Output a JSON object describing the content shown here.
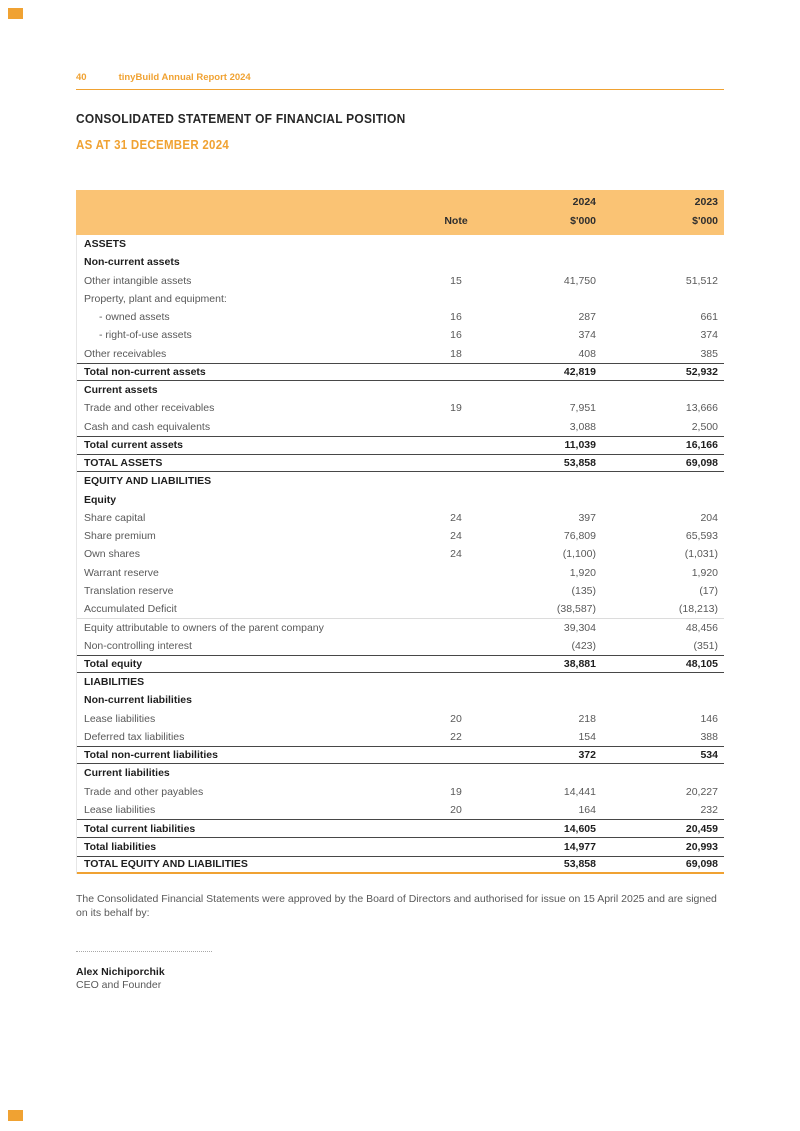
{
  "colors": {
    "accent": "#F0A232",
    "band": "#FAC374"
  },
  "page": {
    "number": "40",
    "report_title": "tinyBuild Annual Report 2024"
  },
  "heading": {
    "title": "CONSOLIDATED STATEMENT OF FINANCIAL POSITION",
    "subtitle": "AS AT 31 DECEMBER 2024"
  },
  "table": {
    "columns": {
      "note": "Note",
      "y2024": "2024",
      "y2023": "2023",
      "unit": "$'000"
    },
    "rows": [
      {
        "label": "ASSETS",
        "note": "",
        "v2024": "",
        "v2023": "",
        "cls": "b"
      },
      {
        "label": "Non-current assets",
        "note": "",
        "v2024": "",
        "v2023": "",
        "cls": "b"
      },
      {
        "label": "Other intangible assets",
        "note": "15",
        "v2024": "41,750",
        "v2023": "51,512",
        "cls": ""
      },
      {
        "label": "Property, plant and equipment:",
        "note": "",
        "v2024": "",
        "v2023": "",
        "cls": ""
      },
      {
        "label": "- owned assets",
        "note": "16",
        "v2024": "287",
        "v2023": "661",
        "cls": "ind"
      },
      {
        "label": "- right-of-use assets",
        "note": "16",
        "v2024": "374",
        "v2023": "374",
        "cls": "ind"
      },
      {
        "label": "Other receivables",
        "note": "18",
        "v2024": "408",
        "v2023": "385",
        "cls": ""
      },
      {
        "label": "Total non-current assets",
        "note": "",
        "v2024": "42,819",
        "v2023": "52,932",
        "cls": "b bt bb"
      },
      {
        "label": "Current assets",
        "note": "",
        "v2024": "",
        "v2023": "",
        "cls": "b"
      },
      {
        "label": "Trade and other receivables",
        "note": "19",
        "v2024": "7,951",
        "v2023": "13,666",
        "cls": ""
      },
      {
        "label": "Cash and cash equivalents",
        "note": "",
        "v2024": "3,088",
        "v2023": "2,500",
        "cls": ""
      },
      {
        "label": "Total current assets",
        "note": "",
        "v2024": "11,039",
        "v2023": "16,166",
        "cls": "b bt"
      },
      {
        "label": "TOTAL ASSETS",
        "note": "",
        "v2024": "53,858",
        "v2023": "69,098",
        "cls": "b bt bb"
      },
      {
        "label": "EQUITY AND LIABILITIES",
        "note": "",
        "v2024": "",
        "v2023": "",
        "cls": "b"
      },
      {
        "label": "Equity",
        "note": "",
        "v2024": "",
        "v2023": "",
        "cls": "b"
      },
      {
        "label": "Share capital",
        "note": "24",
        "v2024": "397",
        "v2023": "204",
        "cls": ""
      },
      {
        "label": "Share premium",
        "note": "24",
        "v2024": "76,809",
        "v2023": "65,593",
        "cls": ""
      },
      {
        "label": "Own shares",
        "note": "24",
        "v2024": "(1,100)",
        "v2023": "(1,031)",
        "cls": ""
      },
      {
        "label": "Warrant reserve",
        "note": "",
        "v2024": "1,920",
        "v2023": "1,920",
        "cls": ""
      },
      {
        "label": "Translation reserve",
        "note": "",
        "v2024": "(135)",
        "v2023": "(17)",
        "cls": ""
      },
      {
        "label": "Accumulated Deficit",
        "note": "",
        "v2024": "(38,587)",
        "v2023": "(18,213)",
        "cls": ""
      },
      {
        "label": "Equity attributable to owners of the parent company",
        "note": "",
        "v2024": "39,304",
        "v2023": "48,456",
        "cls": "lt"
      },
      {
        "label": "Non-controlling interest",
        "note": "",
        "v2024": "(423)",
        "v2023": "(351)",
        "cls": ""
      },
      {
        "label": "Total equity",
        "note": "",
        "v2024": "38,881",
        "v2023": "48,105",
        "cls": "b bt bb"
      },
      {
        "label": "LIABILITIES",
        "note": "",
        "v2024": "",
        "v2023": "",
        "cls": "b"
      },
      {
        "label": "Non-current liabilities",
        "note": "",
        "v2024": "",
        "v2023": "",
        "cls": "b"
      },
      {
        "label": "Lease liabilities",
        "note": "20",
        "v2024": "218",
        "v2023": "146",
        "cls": ""
      },
      {
        "label": "Deferred tax liabilities",
        "note": "22",
        "v2024": "154",
        "v2023": "388",
        "cls": ""
      },
      {
        "label": "Total non-current liabilities",
        "note": "",
        "v2024": "372",
        "v2023": "534",
        "cls": "b bt bb"
      },
      {
        "label": "Current liabilities",
        "note": "",
        "v2024": "",
        "v2023": "",
        "cls": "b"
      },
      {
        "label": "Trade and other payables",
        "note": "19",
        "v2024": "14,441",
        "v2023": "20,227",
        "cls": ""
      },
      {
        "label": "Lease liabilities",
        "note": "20",
        "v2024": "164",
        "v2023": "232",
        "cls": ""
      },
      {
        "label": "Total current liabilities",
        "note": "",
        "v2024": "14,605",
        "v2023": "20,459",
        "cls": "b bt"
      },
      {
        "label": "Total  liabilities",
        "note": "",
        "v2024": "14,977",
        "v2023": "20,993",
        "cls": "b bt"
      },
      {
        "label": "TOTAL EQUITY AND LIABILITIES",
        "note": "",
        "v2024": "53,858",
        "v2023": "69,098",
        "cls": "b bt ob"
      }
    ]
  },
  "footer": {
    "approval_text": "The Consolidated Financial Statements were approved by the Board of Directors and authorised for issue on 15 April 2025 and are signed on its behalf by:",
    "signatory_name": "Alex Nichiporchik",
    "signatory_title": "CEO and Founder"
  }
}
